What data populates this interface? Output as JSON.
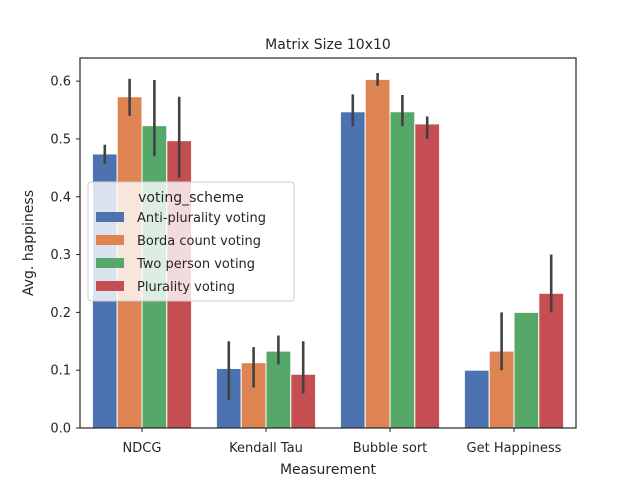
{
  "chart_data": {
    "type": "bar",
    "title": "Matrix Size 10x10",
    "xlabel": "Measurement",
    "ylabel": "Avg. happiness",
    "ylim": [
      0,
      0.64
    ],
    "yticks": [
      "0.0",
      "0.1",
      "0.2",
      "0.3",
      "0.4",
      "0.5",
      "0.6"
    ],
    "categories": [
      "NDCG",
      "Kendall Tau",
      "Bubble sort",
      "Get Happiness"
    ],
    "legend_title": "voting_scheme",
    "legend_position": "center-left",
    "grid": false,
    "series": [
      {
        "name": "Anti-plurality voting",
        "color": "#4c72b0",
        "values": [
          0.474,
          0.103,
          0.547,
          0.1
        ],
        "errors": [
          [
            0.457,
            0.49
          ],
          [
            0.048,
            0.15
          ],
          [
            0.522,
            0.577
          ],
          [
            0.1,
            0.1
          ]
        ]
      },
      {
        "name": "Borda count voting",
        "color": "#dd8452",
        "values": [
          0.573,
          0.113,
          0.603,
          0.133
        ],
        "errors": [
          [
            0.54,
            0.604
          ],
          [
            0.07,
            0.14
          ],
          [
            0.592,
            0.614
          ],
          [
            0.1,
            0.2
          ]
        ]
      },
      {
        "name": "Two person voting",
        "color": "#55a868",
        "values": [
          0.523,
          0.133,
          0.547,
          0.2
        ],
        "errors": [
          [
            0.47,
            0.602
          ],
          [
            0.11,
            0.16
          ],
          [
            0.522,
            0.576
          ],
          [
            0.2,
            0.2
          ]
        ]
      },
      {
        "name": "Plurality voting",
        "color": "#c44e52",
        "values": [
          0.497,
          0.093,
          0.526,
          0.233
        ],
        "errors": [
          [
            0.433,
            0.573
          ],
          [
            0.06,
            0.15
          ],
          [
            0.5,
            0.539
          ],
          [
            0.2,
            0.3
          ]
        ]
      }
    ]
  }
}
